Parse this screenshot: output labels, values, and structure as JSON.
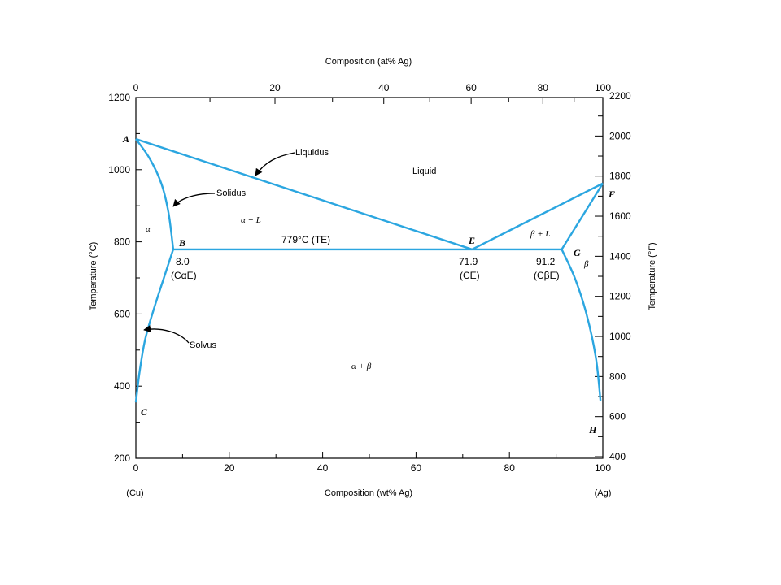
{
  "chart_data": {
    "type": "line",
    "xlabel_bottom": "Composition (wt% Ag)",
    "xlabel_top": "Composition (at% Ag)",
    "ylabel_left": "Temperature (°C)",
    "ylabel_right": "Temperature (°F)",
    "xlim": [
      0,
      100
    ],
    "ylim": [
      200,
      1200
    ],
    "x_ticks": [
      0,
      20,
      40,
      60,
      80,
      100
    ],
    "y_ticks": [
      200,
      400,
      600,
      800,
      1000,
      1200
    ],
    "top_ticks": [
      0,
      20,
      40,
      60,
      80,
      100
    ],
    "right_ticks": [
      400,
      600,
      800,
      1000,
      1200,
      1400,
      1600,
      1800,
      2000,
      2200
    ],
    "endpoint_left": "(Cu)",
    "endpoint_right": "(Ag)",
    "series": [
      {
        "id": "liquidus_left",
        "x": [
          0,
          72
        ],
        "y": [
          1085,
          779
        ]
      },
      {
        "id": "liquidus_right",
        "x": [
          72,
          100
        ],
        "y": [
          779,
          962
        ]
      },
      {
        "id": "solidus_alpha",
        "x": [
          0,
          3,
          5.5,
          7,
          8
        ],
        "y": [
          1085,
          1030,
          960,
          880,
          779
        ]
      },
      {
        "id": "solvus_alpha",
        "x": [
          8,
          6,
          4,
          2,
          0.8,
          0
        ],
        "y": [
          779,
          700,
          620,
          530,
          440,
          355
        ]
      },
      {
        "id": "eutectic_isotherm",
        "x": [
          8,
          91.2
        ],
        "y": [
          779,
          779
        ]
      },
      {
        "id": "solidus_beta",
        "x": [
          100,
          91.2
        ],
        "y": [
          962,
          779
        ]
      },
      {
        "id": "solvus_beta",
        "x": [
          91.2,
          94,
          96.5,
          98.5,
          99.5
        ],
        "y": [
          779,
          700,
          600,
          480,
          360
        ]
      }
    ],
    "points": {
      "A": "A",
      "B": "B",
      "C": "C",
      "E": "E",
      "F": "F",
      "G": "G",
      "H": "H"
    },
    "compositions": {
      "alpha_e": "8.0",
      "eutectic": "71.9",
      "beta_e": "91.2",
      "alpha_e_symbol": "(CαE)",
      "eutectic_symbol": "(CE)",
      "beta_e_symbol": "(CβE)"
    },
    "eutectic_label": "779°C (TE)",
    "region_labels": {
      "liquid": "Liquid",
      "alpha": "α",
      "alpha_liquid": "α + L",
      "beta_liquid": "β + L",
      "beta": "β",
      "alpha_beta": "α + β"
    },
    "line_labels": {
      "liquidus": "Liquidus",
      "solidus": "Solidus",
      "solvus": "Solvus"
    },
    "line_color": "#2ba6e0"
  }
}
